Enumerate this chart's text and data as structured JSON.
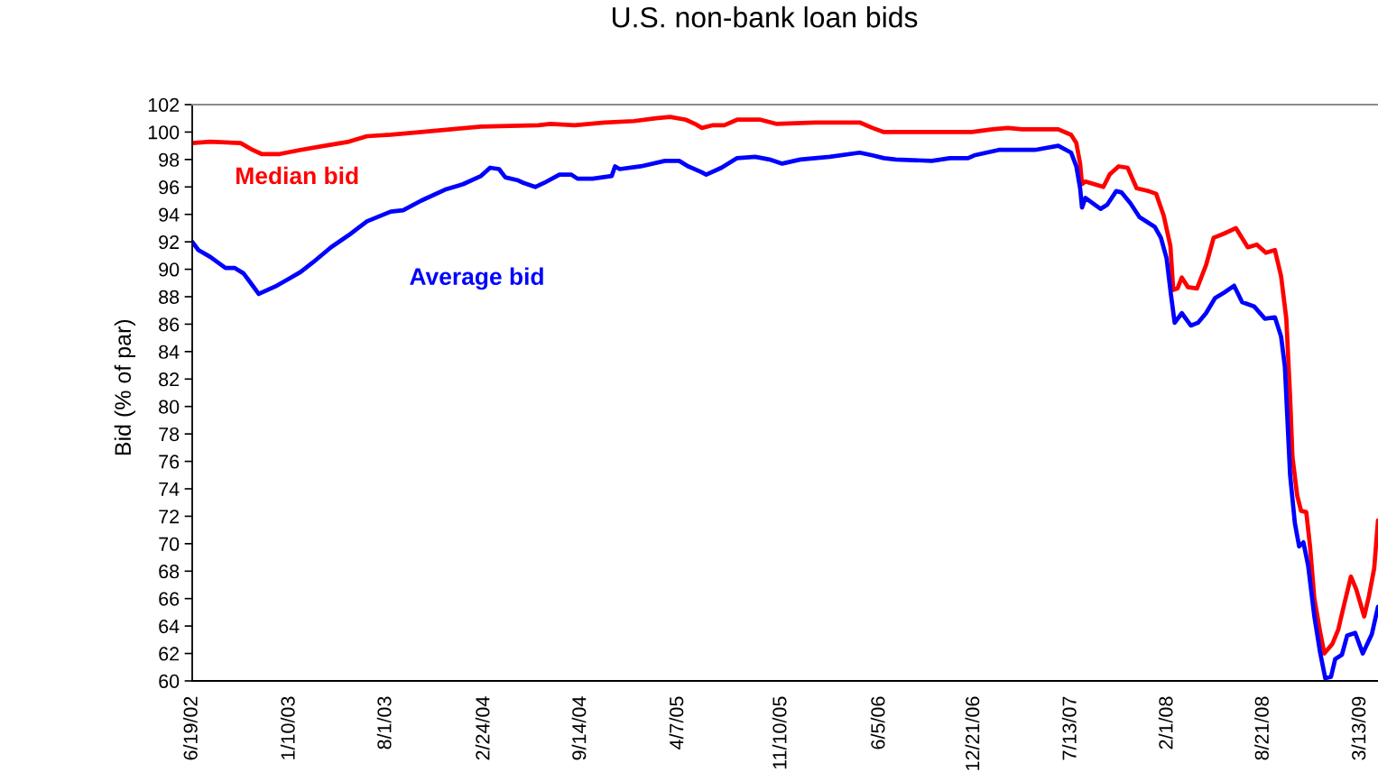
{
  "chart_data": {
    "type": "line",
    "title": "U.S. non-bank loan bids",
    "ylabel": "Bid (% of par)",
    "xlim": [
      "2002-06-19",
      "2009-04-19"
    ],
    "xticks": [
      {
        "value": "2002-06-19",
        "label": "6/19/02"
      },
      {
        "value": "2003-01-10",
        "label": "1/10/03"
      },
      {
        "value": "2003-08-01",
        "label": "8/1/03"
      },
      {
        "value": "2004-02-24",
        "label": "2/24/04"
      },
      {
        "value": "2004-09-14",
        "label": "9/14/04"
      },
      {
        "value": "2005-04-07",
        "label": "4/7/05"
      },
      {
        "value": "2005-11-10",
        "label": "11/10/05"
      },
      {
        "value": "2006-06-05",
        "label": "6/5/06"
      },
      {
        "value": "2006-12-21",
        "label": "12/21/06"
      },
      {
        "value": "2007-07-13",
        "label": "7/13/07"
      },
      {
        "value": "2008-02-01",
        "label": "2/1/08"
      },
      {
        "value": "2008-08-21",
        "label": "8/21/08"
      },
      {
        "value": "2009-03-13",
        "label": "3/13/09"
      }
    ],
    "ylim": [
      60,
      102
    ],
    "yticks": [
      60,
      62,
      64,
      66,
      68,
      70,
      72,
      74,
      76,
      78,
      80,
      82,
      84,
      86,
      88,
      90,
      92,
      94,
      96,
      98,
      100,
      102
    ],
    "series": [
      {
        "name": "Median bid",
        "color": "#ff0000",
        "x": [
          "2002-06-19",
          "2002-07-27",
          "2002-09-29",
          "2002-10-24",
          "2002-11-12",
          "2002-12-20",
          "2003-02-02",
          "2003-03-25",
          "2003-05-15",
          "2003-06-22",
          "2003-08-11",
          "2003-10-14",
          "2003-12-16",
          "2004-02-17",
          "2004-06-17",
          "2004-07-12",
          "2004-09-01",
          "2004-11-03",
          "2005-01-04",
          "2005-02-19",
          "2005-03-21",
          "2005-04-23",
          "2005-05-12",
          "2005-05-27",
          "2005-06-19",
          "2005-07-13",
          "2005-08-09",
          "2005-09-27",
          "2005-10-30",
          "2006-01-19",
          "2006-04-24",
          "2006-05-21",
          "2006-06-14",
          "2006-11-13",
          "2006-12-16",
          "2007-01-28",
          "2007-03-02",
          "2007-04-01",
          "2007-06-16",
          "2007-07-13",
          "2007-07-24",
          "2007-08-01",
          "2007-08-05",
          "2007-08-12",
          "2007-08-31",
          "2007-09-19",
          "2007-10-02",
          "2007-10-21",
          "2007-11-09",
          "2007-11-28",
          "2007-12-23",
          "2008-01-08",
          "2008-01-24",
          "2008-02-07",
          "2008-02-13",
          "2008-02-22",
          "2008-03-02",
          "2008-03-15",
          "2008-04-03",
          "2008-04-22",
          "2008-05-08",
          "2008-05-30",
          "2008-06-24",
          "2008-07-19",
          "2008-08-07",
          "2008-08-26",
          "2008-09-14",
          "2008-09-27",
          "2008-10-08",
          "2008-10-16",
          "2008-10-21",
          "2008-10-31",
          "2008-11-08",
          "2008-11-19",
          "2008-11-27",
          "2008-12-06",
          "2008-12-18",
          "2008-12-27",
          "2009-01-13",
          "2009-01-25",
          "2009-02-07",
          "2009-02-21",
          "2009-03-04",
          "2009-03-21",
          "2009-03-31",
          "2009-04-11",
          "2009-04-19"
        ],
        "values": [
          99.2,
          99.3,
          99.2,
          98.7,
          98.4,
          98.4,
          98.7,
          99.0,
          99.3,
          99.7,
          99.8,
          100.0,
          100.2,
          100.4,
          100.5,
          100.6,
          100.5,
          100.7,
          100.8,
          101.0,
          101.1,
          100.9,
          100.6,
          100.3,
          100.5,
          100.5,
          100.9,
          100.9,
          100.6,
          100.7,
          100.7,
          100.3,
          100.0,
          100.0,
          100.0,
          100.2,
          100.3,
          100.2,
          100.2,
          99.8,
          99.2,
          97.7,
          96.2,
          96.4,
          96.2,
          96.0,
          96.9,
          97.5,
          97.4,
          95.9,
          95.7,
          95.5,
          93.9,
          91.7,
          88.5,
          88.6,
          89.4,
          88.7,
          88.6,
          90.3,
          92.3,
          92.6,
          93.0,
          91.6,
          91.8,
          91.2,
          91.4,
          89.5,
          86.4,
          80.7,
          76.3,
          73.5,
          72.4,
          72.3,
          69.8,
          66.0,
          63.6,
          62.0,
          62.7,
          63.7,
          65.6,
          67.6,
          66.7,
          64.7,
          66.2,
          68.2,
          71.7
        ]
      },
      {
        "name": "Average bid",
        "color": "#0000ff",
        "x": [
          "2002-06-19",
          "2002-07-02",
          "2002-07-27",
          "2002-08-28",
          "2002-09-16",
          "2002-10-05",
          "2002-10-18",
          "2002-11-06",
          "2002-11-25",
          "2002-12-14",
          "2003-01-08",
          "2003-02-02",
          "2003-02-28",
          "2003-04-07",
          "2003-05-15",
          "2003-06-22",
          "2003-08-11",
          "2003-09-06",
          "2003-10-14",
          "2003-12-03",
          "2004-01-10",
          "2004-02-17",
          "2004-03-07",
          "2004-03-26",
          "2004-04-08",
          "2004-05-03",
          "2004-05-16",
          "2004-06-10",
          "2004-06-29",
          "2004-07-31",
          "2004-08-25",
          "2004-09-07",
          "2004-10-09",
          "2004-11-18",
          "2004-11-25",
          "2004-12-05",
          "2005-01-18",
          "2005-03-10",
          "2005-04-09",
          "2005-04-28",
          "2005-05-25",
          "2005-06-05",
          "2005-07-07",
          "2005-08-09",
          "2005-09-16",
          "2005-10-16",
          "2005-11-12",
          "2005-12-20",
          "2006-02-20",
          "2006-04-24",
          "2006-05-21",
          "2006-06-14",
          "2006-07-09",
          "2006-09-23",
          "2006-10-31",
          "2006-12-08",
          "2006-12-21",
          "2007-02-11",
          "2007-04-28",
          "2007-06-16",
          "2007-07-13",
          "2007-07-24",
          "2007-08-01",
          "2007-08-05",
          "2007-08-12",
          "2007-09-13",
          "2007-09-27",
          "2007-10-16",
          "2007-10-27",
          "2007-11-15",
          "2007-12-04",
          "2008-01-05",
          "2008-01-18",
          "2008-01-30",
          "2008-02-08",
          "2008-02-16",
          "2008-03-02",
          "2008-03-21",
          "2008-04-05",
          "2008-04-22",
          "2008-05-11",
          "2008-05-30",
          "2008-06-20",
          "2008-07-07",
          "2008-08-01",
          "2008-08-24",
          "2008-09-14",
          "2008-09-27",
          "2008-10-05",
          "2008-10-16",
          "2008-10-26",
          "2008-11-04",
          "2008-11-13",
          "2008-11-23",
          "2008-12-06",
          "2008-12-18",
          "2008-12-29",
          "2009-01-10",
          "2009-01-19",
          "2009-02-02",
          "2009-02-13",
          "2009-03-02",
          "2009-03-18",
          "2009-04-06",
          "2009-04-19"
        ],
        "values": [
          92.0,
          91.4,
          90.9,
          90.1,
          90.1,
          89.7,
          89.1,
          88.2,
          88.5,
          88.8,
          89.3,
          89.8,
          90.5,
          91.6,
          92.5,
          93.5,
          94.2,
          94.3,
          95.0,
          95.8,
          96.2,
          96.8,
          97.4,
          97.3,
          96.7,
          96.5,
          96.3,
          96.0,
          96.3,
          96.9,
          96.9,
          96.6,
          96.6,
          96.8,
          97.5,
          97.3,
          97.5,
          97.9,
          97.9,
          97.5,
          97.1,
          96.9,
          97.4,
          98.1,
          98.2,
          98.0,
          97.7,
          98.0,
          98.2,
          98.5,
          98.3,
          98.1,
          98.0,
          97.9,
          98.1,
          98.1,
          98.3,
          98.7,
          98.7,
          99.0,
          98.5,
          97.5,
          95.9,
          94.5,
          95.2,
          94.4,
          94.7,
          95.7,
          95.6,
          94.8,
          93.8,
          93.1,
          92.3,
          90.8,
          88.2,
          86.1,
          86.8,
          85.9,
          86.1,
          86.8,
          87.9,
          88.3,
          88.8,
          87.6,
          87.3,
          86.4,
          86.5,
          85.1,
          82.9,
          75.0,
          71.5,
          69.8,
          70.1,
          68.4,
          64.7,
          62.1,
          60.2,
          60.3,
          61.6,
          61.9,
          63.3,
          63.5,
          62.0,
          63.4,
          65.4
        ]
      }
    ]
  }
}
